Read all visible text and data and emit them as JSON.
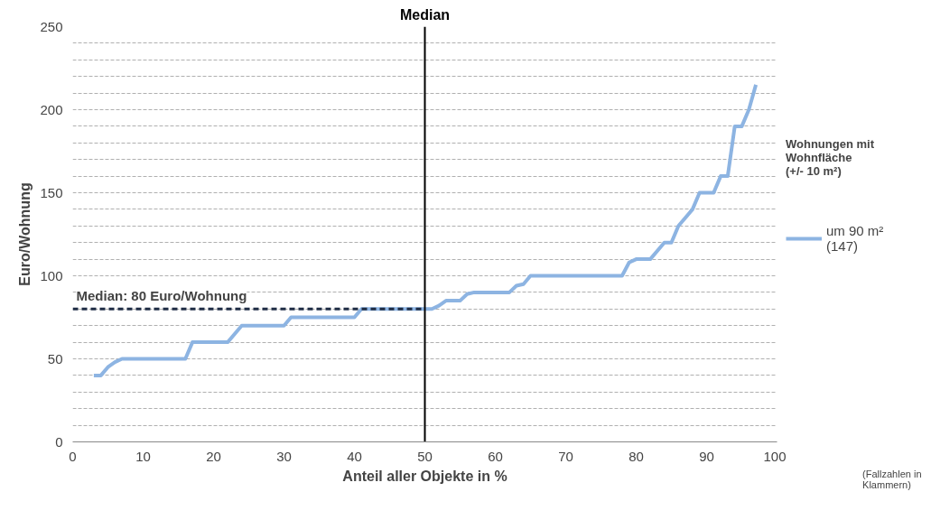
{
  "chart_data": {
    "type": "line",
    "xlabel": "Anteil aller Objekte in %",
    "ylabel": "Euro/Wohnung",
    "legend_title": "Wohnungen mit Wohnfläche (+/- 10 m²)",
    "annotations": [
      "(Fallzahlen in Klammern)"
    ],
    "x": [
      3,
      4,
      5,
      6,
      7,
      16,
      17,
      22,
      24,
      30,
      31,
      40,
      41,
      51,
      52,
      53,
      55,
      56,
      57,
      62,
      63,
      64,
      65,
      78,
      79,
      80,
      82,
      84,
      85,
      86,
      88,
      89,
      91,
      92,
      93,
      94,
      95,
      96,
      97
    ],
    "series": [
      {
        "name": "um 90 m² (147)",
        "color": "#8db4e2",
        "values": [
          40,
          40,
          45,
          48,
          50,
          50,
          60,
          60,
          70,
          70,
          75,
          75,
          80,
          80,
          82,
          85,
          85,
          89,
          90,
          90,
          94,
          95,
          100,
          100,
          108,
          110,
          110,
          120,
          120,
          130,
          140,
          150,
          150,
          160,
          160,
          190,
          190,
          200,
          215
        ]
      }
    ],
    "xlim": [
      0,
      100
    ],
    "xticks": [
      0,
      10,
      20,
      30,
      40,
      50,
      60,
      70,
      80,
      90,
      100
    ],
    "ylim": [
      0,
      250
    ],
    "yticks": [
      0,
      {
        "value": 10,
        "label": null
      },
      {
        "value": 20,
        "label": null
      },
      {
        "value": 30,
        "label": null
      },
      {
        "value": 40,
        "label": null
      },
      50,
      {
        "value": 60,
        "label": null
      },
      {
        "value": 70,
        "label": null
      },
      {
        "value": 80,
        "label": null
      },
      {
        "value": 90,
        "label": null
      },
      100,
      {
        "value": 110,
        "label": null
      },
      {
        "value": 120,
        "label": null
      },
      {
        "value": 130,
        "label": null
      },
      {
        "value": 140,
        "label": null
      },
      150,
      {
        "value": 160,
        "label": null
      },
      {
        "value": 170,
        "label": null
      },
      {
        "value": 180,
        "label": null
      },
      {
        "value": 190,
        "label": null
      },
      200,
      {
        "value": 210,
        "label": null
      },
      {
        "value": 220,
        "label": null
      },
      {
        "value": 230,
        "label": null
      },
      {
        "value": 240,
        "label": null
      },
      250
    ],
    "ref_lines": [
      {
        "axis": "x",
        "value": 50,
        "label": "Median",
        "color": "#000000",
        "line_style": "solid"
      },
      {
        "axis": "y",
        "value": 80,
        "label": "Median: 80 Euro/Wohnung",
        "color": "#1f2d45",
        "line_style": "dashed"
      }
    ],
    "grid": "y",
    "legend": "right",
    "marker": "none",
    "line_style": "solid"
  }
}
